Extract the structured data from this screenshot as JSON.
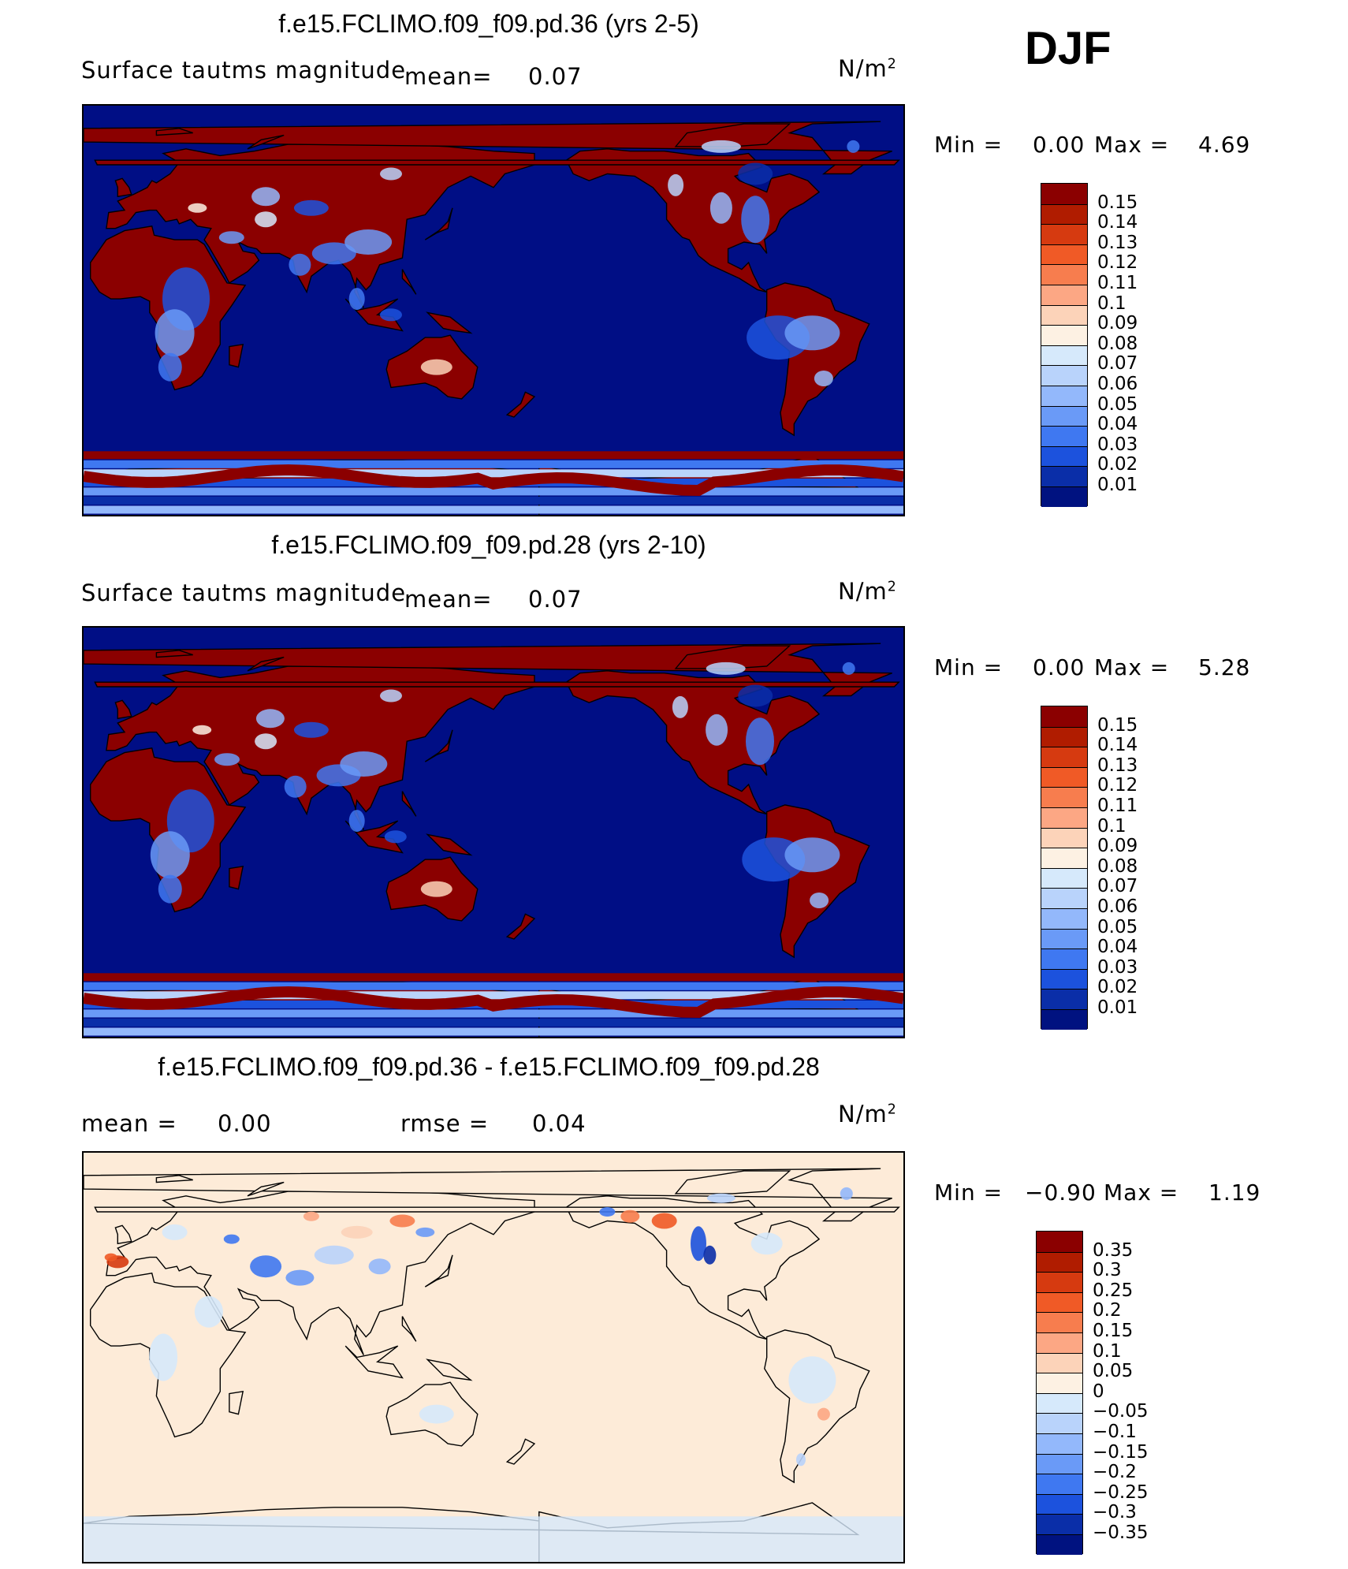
{
  "season": "DJF",
  "panels": [
    {
      "title": "f.e15.FCLIMO.f09_f09.pd.36 (yrs 2-5)",
      "field_label": "Surface tautms magnitude",
      "mean_label": "mean=",
      "mean_value": "0.07",
      "units_base": "N/m",
      "units_exp": "2",
      "min_label": "Min  =",
      "min_value": "0.00",
      "max_label": "Max  =",
      "max_value": "4.69",
      "palette": "abs"
    },
    {
      "title": "f.e15.FCLIMO.f09_f09.pd.28 (yrs 2-10)",
      "field_label": "Surface tautms magnitude",
      "mean_label": "mean=",
      "mean_value": "0.07",
      "units_base": "N/m",
      "units_exp": "2",
      "min_label": "Min  =",
      "min_value": "0.00",
      "max_label": "Max  =",
      "max_value": "5.28",
      "palette": "abs"
    },
    {
      "title": "f.e15.FCLIMO.f09_f09.pd.36 - f.e15.FCLIMO.f09_f09.pd.28",
      "mean_label": "mean =",
      "mean_value": "0.00",
      "rmse_label": "rmse =",
      "rmse_value": "0.04",
      "units_base": "N/m",
      "units_exp": "2",
      "min_label": "Min  =",
      "min_value": "−0.90",
      "max_label": "Max  =",
      "max_value": "1.19",
      "palette": "diff"
    }
  ],
  "chart_data": [
    {
      "type": "heatmap",
      "title": "f.e15.FCLIMO.f09_f09.pd.36 (yrs 2-5)",
      "variable": "Surface tautms magnitude",
      "units": "N/m2",
      "mean": 0.07,
      "min": 0.0,
      "max": 4.69,
      "colorbar_levels": [
        "0.15",
        "0.14",
        "0.13",
        "0.12",
        "0.11",
        "0.1",
        "0.09",
        "0.08",
        "0.07",
        "0.06",
        "0.05",
        "0.04",
        "0.03",
        "0.02",
        "0.01"
      ],
      "colorbar_colors": [
        "#8b0000",
        "#b01c00",
        "#d63a10",
        "#f05a26",
        "#f77d4e",
        "#fca784",
        "#fcd3b9",
        "#fdf1e3",
        "#d6e9fb",
        "#b9d3fb",
        "#93b8fb",
        "#6a9af7",
        "#3f78f1",
        "#1c52dd",
        "#0a2ea8",
        "#001280"
      ],
      "ocean_color": "#000e85",
      "land_color": "#8b0000"
    },
    {
      "type": "heatmap",
      "title": "f.e15.FCLIMO.f09_f09.pd.28 (yrs 2-10)",
      "variable": "Surface tautms magnitude",
      "units": "N/m2",
      "mean": 0.07,
      "min": 0.0,
      "max": 5.28,
      "colorbar_levels": [
        "0.15",
        "0.14",
        "0.13",
        "0.12",
        "0.11",
        "0.1",
        "0.09",
        "0.08",
        "0.07",
        "0.06",
        "0.05",
        "0.04",
        "0.03",
        "0.02",
        "0.01"
      ],
      "colorbar_colors": [
        "#8b0000",
        "#b01c00",
        "#d63a10",
        "#f05a26",
        "#f77d4e",
        "#fca784",
        "#fcd3b9",
        "#fdf1e3",
        "#d6e9fb",
        "#b9d3fb",
        "#93b8fb",
        "#6a9af7",
        "#3f78f1",
        "#1c52dd",
        "#0a2ea8",
        "#001280"
      ],
      "ocean_color": "#000e85",
      "land_color": "#8b0000"
    },
    {
      "type": "heatmap",
      "title": "f.e15.FCLIMO.f09_f09.pd.36 - f.e15.FCLIMO.f09_f09.pd.28",
      "units": "N/m2",
      "mean": 0.0,
      "rmse": 0.04,
      "min": -0.9,
      "max": 1.19,
      "colorbar_levels": [
        "0.35",
        "0.3",
        "0.25",
        "0.2",
        "0.15",
        "0.1",
        "0.05",
        "0",
        "−0.05",
        "−0.1",
        "−0.15",
        "−0.2",
        "−0.25",
        "−0.3",
        "−0.35"
      ],
      "colorbar_colors": [
        "#8b0000",
        "#b01c00",
        "#d63a10",
        "#f05a26",
        "#f77d4e",
        "#fca784",
        "#fcd3b9",
        "#fdf1e3",
        "#d6e9fb",
        "#b9d3fb",
        "#93b8fb",
        "#6a9af7",
        "#3f78f1",
        "#1c52dd",
        "#0a2ea8",
        "#001280"
      ],
      "ocean_color": "#fdebd8",
      "land_color": "#d6e9fb"
    }
  ]
}
